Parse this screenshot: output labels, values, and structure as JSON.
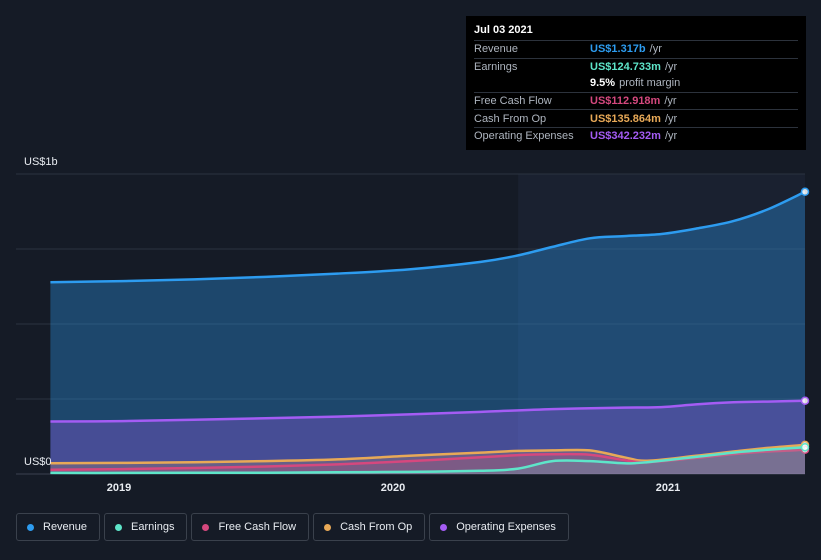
{
  "tooltip": {
    "date": "Jul 03 2021",
    "rows": {
      "revenue": {
        "label": "Revenue",
        "value": "US$1.317b",
        "unit": "/yr"
      },
      "earnings": {
        "label": "Earnings",
        "value": "US$124.733m",
        "unit": "/yr"
      },
      "margin": {
        "value": "9.5%",
        "text": "profit margin"
      },
      "fcf": {
        "label": "Free Cash Flow",
        "value": "US$112.918m",
        "unit": "/yr"
      },
      "cfo": {
        "label": "Cash From Op",
        "value": "US$135.864m",
        "unit": "/yr"
      },
      "opex": {
        "label": "Operating Expenses",
        "value": "US$342.232m",
        "unit": "/yr"
      }
    }
  },
  "colors": {
    "revenue": "#2d9cf0",
    "earnings": "#5ee5c9",
    "fcf": "#d5487e",
    "cfo": "#e8a957",
    "opex": "#a45cf4"
  },
  "legend": [
    {
      "key": "revenue",
      "label": "Revenue"
    },
    {
      "key": "earnings",
      "label": "Earnings"
    },
    {
      "key": "fcf",
      "label": "Free Cash Flow"
    },
    {
      "key": "cfo",
      "label": "Cash From Op"
    },
    {
      "key": "opex",
      "label": "Operating Expenses"
    }
  ],
  "chart_data": {
    "type": "area",
    "y_labels": {
      "top": "US$1b",
      "bottom": "US$0"
    },
    "ylim": [
      0,
      1.4
    ],
    "xlim": [
      2018.75,
      2021.5
    ],
    "x_ticks": [
      {
        "value": 2019,
        "label": "2019"
      },
      {
        "value": 2020,
        "label": "2020"
      },
      {
        "value": 2021,
        "label": "2021"
      }
    ],
    "highlight_from": 2020.5,
    "series": [
      {
        "name": "Revenue",
        "key": "revenue",
        "x": [
          2018.87,
          2019.12,
          2019.37,
          2019.62,
          2019.87,
          2020.12,
          2020.37,
          2020.5,
          2020.62,
          2020.75,
          2020.87,
          2021.0,
          2021.12,
          2021.25,
          2021.37,
          2021.5
        ],
        "y": [
          0.895,
          0.9,
          0.908,
          0.92,
          0.935,
          0.955,
          0.99,
          1.02,
          1.06,
          1.1,
          1.11,
          1.12,
          1.145,
          1.18,
          1.235,
          1.317
        ]
      },
      {
        "name": "Operating Expenses",
        "key": "opex",
        "x": [
          2018.87,
          2019.12,
          2019.37,
          2019.62,
          2019.87,
          2020.12,
          2020.37,
          2020.62,
          2020.87,
          2021.0,
          2021.12,
          2021.25,
          2021.37,
          2021.5
        ],
        "y": [
          0.245,
          0.247,
          0.253,
          0.26,
          0.268,
          0.278,
          0.29,
          0.303,
          0.31,
          0.312,
          0.325,
          0.335,
          0.338,
          0.342
        ]
      },
      {
        "name": "Cash From Op",
        "key": "cfo",
        "x": [
          2018.87,
          2019.12,
          2019.37,
          2019.62,
          2019.87,
          2020.12,
          2020.37,
          2020.5,
          2020.62,
          2020.75,
          2020.87,
          2020.95,
          2021.12,
          2021.25,
          2021.37,
          2021.5
        ],
        "y": [
          0.05,
          0.052,
          0.055,
          0.06,
          0.068,
          0.085,
          0.1,
          0.108,
          0.11,
          0.11,
          0.078,
          0.062,
          0.085,
          0.105,
          0.122,
          0.136
        ]
      },
      {
        "name": "Free Cash Flow",
        "key": "fcf",
        "x": [
          2018.87,
          2019.12,
          2019.37,
          2019.62,
          2019.87,
          2020.12,
          2020.37,
          2020.5,
          2020.62,
          2020.75,
          2020.87,
          2020.95,
          2021.12,
          2021.25,
          2021.37,
          2021.5
        ],
        "y": [
          0.02,
          0.023,
          0.028,
          0.035,
          0.045,
          0.06,
          0.078,
          0.088,
          0.092,
          0.09,
          0.065,
          0.055,
          0.075,
          0.093,
          0.105,
          0.113
        ]
      },
      {
        "name": "Earnings",
        "key": "earnings",
        "x": [
          2018.87,
          2019.12,
          2019.37,
          2019.62,
          2019.87,
          2020.12,
          2020.37,
          2020.5,
          2020.62,
          2020.75,
          2020.87,
          2020.95,
          2021.12,
          2021.25,
          2021.37,
          2021.5
        ],
        "y": [
          0.005,
          0.005,
          0.006,
          0.006,
          0.008,
          0.01,
          0.015,
          0.025,
          0.06,
          0.06,
          0.05,
          0.055,
          0.08,
          0.1,
          0.113,
          0.125
        ]
      }
    ]
  }
}
